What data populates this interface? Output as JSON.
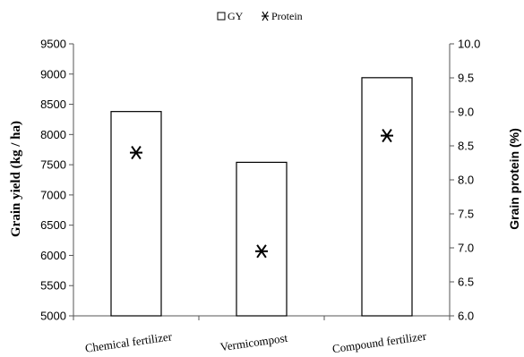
{
  "chart_data": {
    "type": "bar",
    "categories": [
      "Chemical fertilizer",
      "Vermicompost",
      "Compound fertilizer"
    ],
    "series": [
      {
        "name": "GY",
        "type": "bar",
        "axis": "left",
        "values": [
          8380,
          7540,
          8940
        ]
      },
      {
        "name": "Protein",
        "type": "scatter",
        "axis": "right",
        "values": [
          8.4,
          6.95,
          8.65
        ]
      }
    ],
    "ylabel": "Grain yield (kg / ha)",
    "ylabel_right": "Grain protein (%)",
    "ylim": [
      5000,
      9500
    ],
    "ylim_right": [
      6.0,
      10.0
    ],
    "yticks": [
      "5000",
      "5500",
      "6000",
      "6500",
      "7000",
      "7500",
      "8000",
      "8500",
      "9000",
      "9500"
    ],
    "yticks_right": [
      "6.0",
      "6.5",
      "7.0",
      "7.5",
      "8.0",
      "8.5",
      "9.0",
      "9.5",
      "10.0"
    ],
    "legend": {
      "position": "top-center",
      "items": [
        "GY",
        "Protein"
      ]
    },
    "grid": false
  }
}
